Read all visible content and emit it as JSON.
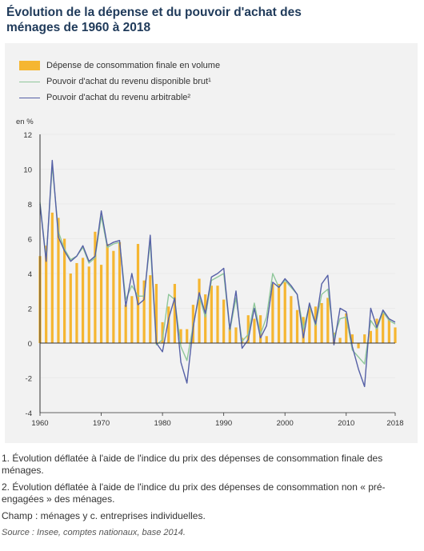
{
  "page": {
    "title": "Évolution de la dépense et du pouvoir d'achat des ménages de 1960 à 2018"
  },
  "legend": {
    "consumption": "Dépense de consommation finale en volume",
    "rdb": "Pouvoir d'achat du revenu disponible brut¹",
    "arbitrable": "Pouvoir d'achat du revenu arbitrable²"
  },
  "notes": {
    "note1": "1. Évolution déflatée à l'aide de l'indice du prix des dépenses de consommation finale des ménages.",
    "note2": "2. Évolution déflatée à l'aide de l'indice du prix des dépenses de consommation non « pré-engagées » des ménages.",
    "champ": "Champ : ménages y c. entreprises individuelles.",
    "source": "Source : Insee, comptes nationaux, base 2014."
  },
  "colors": {
    "bar": "#f5b631",
    "rdb": "#8fc79a",
    "arbitrable": "#5560a6",
    "axis": "#333333"
  },
  "chart_data": {
    "type": "bar",
    "y_unit_label": "en %",
    "ylim": [
      -4,
      12
    ],
    "y_ticks": [
      -4,
      -2,
      0,
      2,
      4,
      6,
      8,
      10,
      12
    ],
    "x_ticks": [
      1960,
      1970,
      1980,
      1990,
      2000,
      2010,
      2018
    ],
    "x": [
      1960,
      1961,
      1962,
      1963,
      1964,
      1965,
      1966,
      1967,
      1968,
      1969,
      1970,
      1971,
      1972,
      1973,
      1974,
      1975,
      1976,
      1977,
      1978,
      1979,
      1980,
      1981,
      1982,
      1983,
      1984,
      1985,
      1986,
      1987,
      1988,
      1989,
      1990,
      1991,
      1992,
      1993,
      1994,
      1995,
      1996,
      1997,
      1998,
      1999,
      2000,
      2001,
      2002,
      2003,
      2004,
      2005,
      2006,
      2007,
      2008,
      2009,
      2010,
      2011,
      2012,
      2013,
      2014,
      2015,
      2016,
      2017,
      2018
    ],
    "series": [
      {
        "name": "Dépense de consommation finale en volume",
        "kind": "bar",
        "values": [
          5.0,
          5.6,
          7.5,
          7.2,
          6.0,
          4.0,
          4.6,
          4.9,
          4.4,
          6.4,
          4.5,
          5.7,
          5.3,
          5.8,
          2.2,
          2.7,
          5.7,
          3.6,
          3.9,
          3.4,
          1.2,
          2.1,
          3.4,
          0.8,
          0.8,
          2.2,
          3.7,
          2.8,
          3.3,
          3.3,
          2.5,
          0.9,
          0.9,
          0.3,
          1.6,
          1.4,
          1.6,
          0.4,
          3.4,
          3.4,
          3.5,
          2.7,
          1.9,
          1.5,
          2.1,
          2.1,
          2.3,
          2.6,
          0.6,
          0.3,
          1.7,
          0.5,
          -0.3,
          0.5,
          0.7,
          1.4,
          1.7,
          1.4,
          0.9
        ]
      },
      {
        "name": "Pouvoir d'achat du revenu disponible brut¹",
        "kind": "line",
        "values": [
          8.1,
          4.8,
          10.2,
          6.4,
          5.4,
          4.8,
          5.0,
          5.5,
          4.6,
          4.9,
          7.3,
          5.5,
          5.7,
          5.8,
          2.5,
          3.3,
          2.7,
          2.7,
          5.8,
          -0.1,
          0.2,
          2.8,
          2.5,
          -0.2,
          -1.0,
          1.0,
          2.7,
          1.5,
          3.6,
          3.8,
          4.0,
          0.7,
          2.6,
          0.1,
          0.5,
          2.3,
          0.5,
          1.5,
          4.0,
          3.2,
          3.6,
          3.2,
          2.8,
          0.8,
          2.2,
          1.0,
          2.8,
          3.1,
          0.3,
          1.4,
          1.5,
          -0.4,
          -0.8,
          -1.2,
          1.3,
          0.8,
          1.8,
          1.3,
          1.1
        ]
      },
      {
        "name": "Pouvoir d'achat du revenu arbitrable²",
        "kind": "line",
        "values": [
          8.0,
          4.7,
          10.5,
          6.1,
          5.3,
          4.7,
          5.0,
          5.6,
          4.7,
          5.0,
          7.6,
          5.6,
          5.8,
          5.9,
          2.1,
          4.0,
          2.2,
          2.5,
          6.2,
          0.0,
          -0.5,
          1.4,
          2.6,
          -1.1,
          -2.3,
          0.9,
          2.9,
          1.7,
          3.8,
          4.0,
          4.3,
          0.8,
          3.0,
          -0.3,
          0.2,
          2.0,
          0.3,
          1.0,
          3.5,
          3.2,
          3.7,
          3.3,
          2.8,
          0.3,
          2.3,
          1.1,
          3.4,
          3.9,
          -0.1,
          2.0,
          1.8,
          -0.2,
          -1.5,
          -2.5,
          2.0,
          0.9,
          1.9,
          1.4,
          1.2
        ]
      }
    ]
  }
}
